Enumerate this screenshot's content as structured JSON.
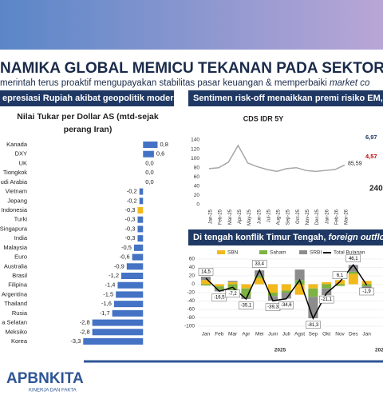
{
  "header": {
    "title": "NAMIKA GLOBAL MEMICU TEKANAN PADA SEKTOR KEUA",
    "subtitle": "merintah terus proaktif mengupayakan stabilitas pasar keuangan & memperbaiki ",
    "subtitle_italic": "market co"
  },
  "panels": [
    "epresiasi Rupiah akibat geopolitik moderat",
    "Sentimen risk-off menaikkan premi risiko EM, pe"
  ],
  "outflow_panel": {
    "title": "Di tengah konflik Timur Tengah, ",
    "title_italic": "foreign outflow t"
  },
  "footer": {
    "logo": "APBNKITA",
    "tagline": "KINERJA DAN FAKTA"
  },
  "chart_data": [
    {
      "type": "hbar",
      "title": [
        "Nilai Tukar per Dollar AS (mtd-sejak",
        "perang Iran)"
      ],
      "categories": [
        "Kanada",
        "DXY",
        "UK",
        "Tiongkok",
        "udi Arabia",
        "Vietnam",
        "Jepang",
        "Indonesia",
        "Turki",
        "Singapura",
        "India",
        "Malaysia",
        "Euro",
        "Australia",
        "Brasil",
        "Filipina",
        "Argentina",
        "Thailand",
        "Rusia",
        "a Selatan",
        "Meksiko",
        "Korea"
      ],
      "values": [
        0.8,
        0.6,
        0.0,
        0.0,
        0.0,
        -0.2,
        -0.2,
        -0.3,
        -0.3,
        -0.3,
        -0.3,
        -0.5,
        -0.6,
        -0.9,
        -1.2,
        -1.4,
        -1.5,
        -1.6,
        -1.7,
        -2.8,
        -2.8,
        -3.3
      ],
      "value_labels": [
        "0,8",
        "0,6",
        "0,0",
        "0,0",
        "0,0",
        "-0,2",
        "-0,2",
        "-0,3",
        "-0,3",
        "-0,3",
        "-0,3",
        "-0,5",
        "-0,6",
        "-0,9",
        "-1,2",
        "-1,4",
        "-1,5",
        "-1,6",
        "-1,7",
        "-2,8",
        "-2,8",
        "-3,3"
      ],
      "colors": [
        "#4472c4",
        "#4472c4",
        "#4472c4",
        "#4472c4",
        "#4472c4",
        "#4472c4",
        "#4472c4",
        "#f2b91c",
        "#4472c4",
        "#4472c4",
        "#4472c4",
        "#4472c4",
        "#4472c4",
        "#4472c4",
        "#4472c4",
        "#4472c4",
        "#4472c4",
        "#4472c4",
        "#4472c4",
        "#4472c4",
        "#4472c4",
        "#4472c4"
      ],
      "xlim": [
        -3.4,
        1.0
      ]
    },
    {
      "type": "line",
      "title": "CDS IDR 5Y",
      "categories": [
        "Jan-25",
        "Feb-25",
        "Mar-25",
        "Apr-25",
        "May-25",
        "Jun-25",
        "Jul-25",
        "Aug-25",
        "Sep-25",
        "Oct-25",
        "Nov-25",
        "Dec-25",
        "Jan-26",
        "Feb-26",
        "Mar-26"
      ],
      "values": [
        78,
        80,
        92,
        128,
        90,
        82,
        76,
        72,
        78,
        80,
        74,
        72,
        74,
        76,
        85.59
      ],
      "value_labels": [
        null,
        null,
        null,
        null,
        null,
        null,
        null,
        null,
        null,
        null,
        null,
        null,
        null,
        null,
        "85,59"
      ],
      "color": "#a6a6a6",
      "ylim": [
        0,
        140
      ],
      "yticks": [
        0,
        20,
        40,
        60,
        80,
        100,
        120,
        140
      ],
      "annotations": [
        "6,97",
        "4,57",
        "240"
      ]
    },
    {
      "type": "stacked",
      "categories": [
        "Jan",
        "Feb",
        "Mar",
        "Apr",
        "Mei",
        "Juni",
        "Juli",
        "Agst",
        "Sep",
        "Okt",
        "Nov",
        "Des",
        "Jan"
      ],
      "x_group_labels": [
        "2025",
        "202"
      ],
      "series": [
        {
          "name": "SBN",
          "color": "#f2b91c",
          "values": [
            10,
            -5,
            5,
            -10,
            15,
            -20,
            -15,
            -25,
            -10,
            5,
            10,
            25,
            8
          ]
        },
        {
          "name": "Saham",
          "color": "#7cb342",
          "values": [
            -3,
            -8,
            -15,
            -20,
            5,
            -8,
            -5,
            10,
            -20,
            -10,
            -4,
            5,
            -5
          ]
        },
        {
          "name": "SRBI",
          "color": "#8c8c8c",
          "values": [
            8,
            -4,
            3,
            -5,
            13,
            -11,
            -14,
            25,
            -51,
            -16,
            0,
            16,
            -5
          ]
        }
      ],
      "total": {
        "name": "Total Bulanan",
        "color": "#000000",
        "values": [
          14.5,
          -16.5,
          -7.2,
          -35.1,
          33.4,
          -39.3,
          -34.6,
          10,
          -81.3,
          -21.1,
          6.1,
          46.1,
          -1.9
        ],
        "value_labels": [
          "14,5",
          "-16,5",
          "-7,2",
          "-35,1",
          "33,4",
          "-39,3",
          "-34,6",
          null,
          "-81,3",
          "-21,1",
          "6,1",
          "46,1",
          "-1,9"
        ]
      },
      "ylim": [
        -100,
        60
      ],
      "yticks": [
        -100,
        -80,
        -60,
        -40,
        -20,
        0,
        20,
        40,
        60
      ]
    }
  ]
}
